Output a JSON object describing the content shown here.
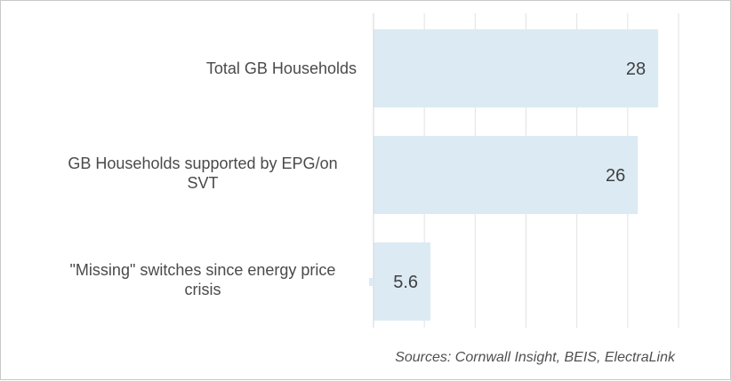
{
  "chart_data": {
    "type": "bar",
    "orientation": "horizontal",
    "categories": [
      [
        "Total GB Households"
      ],
      [
        "GB Households supported by EPG/on",
        "SVT"
      ],
      [
        "\"Missing\" switches since energy price",
        "crisis"
      ]
    ],
    "values": [
      28,
      26,
      5.6
    ],
    "value_labels": [
      "28",
      "26",
      "5.6"
    ],
    "xlim": [
      0,
      30
    ],
    "grid": true,
    "bar_color": "#dceaf3",
    "grid_color": "#e2e2e2",
    "axis_color": "#d6d6d6",
    "title": "",
    "xlabel": "",
    "ylabel": ""
  },
  "footer": {
    "source": "Sources: Cornwall Insight, BEIS, ElectraLink"
  }
}
